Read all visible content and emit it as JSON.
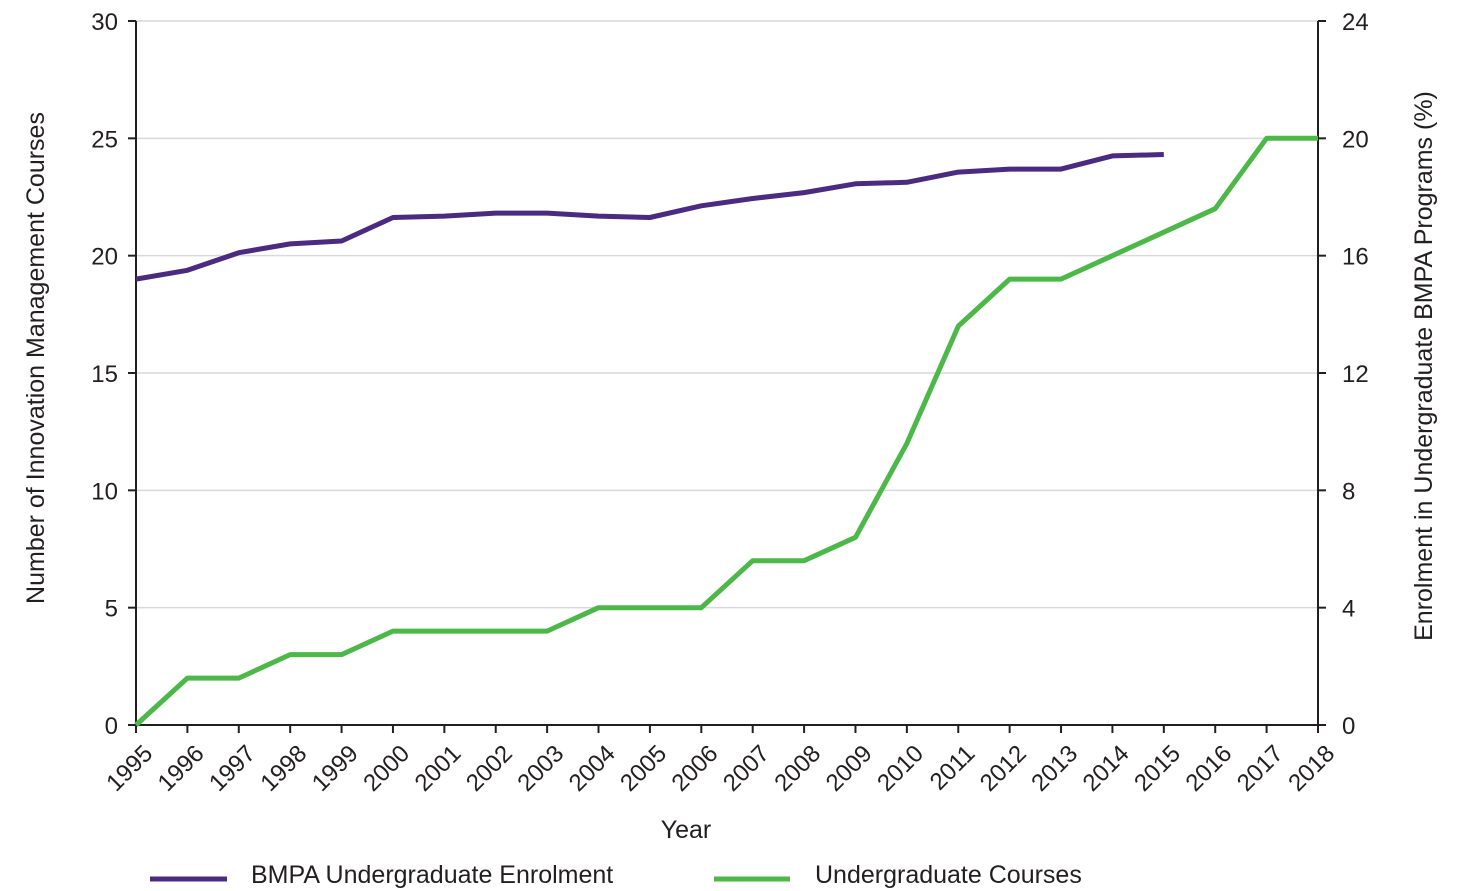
{
  "chart_data": {
    "type": "line",
    "title": "",
    "xlabel": "Year",
    "ylabel_left": "Number of Innovation Management Courses",
    "ylabel_right": "Enrolment in Undergraduate BMPA Programs (%)",
    "x": [
      "1995",
      "1996",
      "1997",
      "1998",
      "1999",
      "2000",
      "2001",
      "2002",
      "2003",
      "2004",
      "2005",
      "2006",
      "2007",
      "2008",
      "2009",
      "2010",
      "2011",
      "2012",
      "2013",
      "2014",
      "2015",
      "2016",
      "2017",
      "2018"
    ],
    "ylim_left": [
      0,
      30
    ],
    "yticks_left": [
      0,
      5,
      10,
      15,
      20,
      25,
      30
    ],
    "ylim_right": [
      0,
      24
    ],
    "yticks_right": [
      0,
      4,
      8,
      12,
      16,
      20,
      24
    ],
    "grid": true,
    "legend_position": "bottom",
    "series": [
      {
        "name": "BMPA Undergraduate Enrolment",
        "axis": "right",
        "color": "#4b2a82",
        "values": [
          15.2,
          15.5,
          16.1,
          16.4,
          16.5,
          17.3,
          17.35,
          17.45,
          17.45,
          17.35,
          17.3,
          17.7,
          17.95,
          18.15,
          18.45,
          18.5,
          18.85,
          18.95,
          18.95,
          19.4,
          19.45,
          null,
          null,
          null
        ]
      },
      {
        "name": "Undergraduate Courses",
        "axis": "left",
        "color": "#4cb848",
        "values": [
          0,
          2,
          2,
          3,
          3,
          4,
          4,
          4,
          4,
          5,
          5,
          5,
          7,
          7,
          8,
          12,
          17,
          19,
          19,
          20,
          21,
          22,
          25,
          25
        ]
      }
    ]
  }
}
